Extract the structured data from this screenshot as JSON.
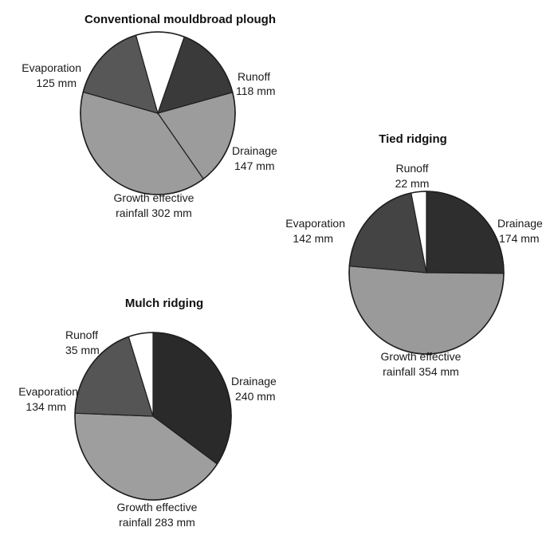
{
  "chart_data": [
    {
      "type": "pie",
      "title": "Conventional mouldbroad plough",
      "slices": [
        {
          "name": "Runoff",
          "label_line1": "Runoff",
          "label_line2": "118 mm",
          "value": 118,
          "color": "#3a3a3a"
        },
        {
          "name": "Drainage",
          "label_line1": "Drainage",
          "label_line2": "147 mm",
          "value": 147,
          "color": "#9c9c9c"
        },
        {
          "name": "Growth effective rainfall",
          "label_line1": "Growth effective",
          "label_line2": "rainfall 302 mm",
          "value": 302,
          "color": "#9c9c9c"
        },
        {
          "name": "Evaporation",
          "label_line1": "Evaporation",
          "label_line2": "125 mm",
          "value": 125,
          "color": "#575757"
        },
        {
          "name": "unlabelled",
          "label_line1": "",
          "label_line2": "",
          "value": 78,
          "color": "#ffffff"
        }
      ]
    },
    {
      "type": "pie",
      "title": "Tied ridging",
      "slices": [
        {
          "name": "Drainage",
          "label_line1": "Drainage",
          "label_line2": "174 mm",
          "value": 174,
          "color": "#2e2e2e"
        },
        {
          "name": "Growth effective rainfall",
          "label_line1": "Growth effective",
          "label_line2": "rainfall 354 mm",
          "value": 354,
          "color": "#9a9a9a"
        },
        {
          "name": "Evaporation",
          "label_line1": "Evaporation",
          "label_line2": "142 mm",
          "value": 142,
          "color": "#444444"
        },
        {
          "name": "Runoff",
          "label_line1": "Runoff",
          "label_line2": "22 mm",
          "value": 22,
          "color": "#ffffff"
        }
      ]
    },
    {
      "type": "pie",
      "title": "Mulch ridging",
      "slices": [
        {
          "name": "Drainage",
          "label_line1": "Drainage",
          "label_line2": "240 mm",
          "value": 240,
          "color": "#2a2a2a"
        },
        {
          "name": "Growth effective rainfall",
          "label_line1": "Growth effective",
          "label_line2": "rainfall 283 mm",
          "value": 283,
          "color": "#9e9e9e"
        },
        {
          "name": "Evaporation",
          "label_line1": "Evaporation",
          "label_line2": "134 mm",
          "value": 134,
          "color": "#555555"
        },
        {
          "name": "Runoff",
          "label_line1": "Runoff",
          "label_line2": "35 mm",
          "value": 35,
          "color": "#ffffff"
        }
      ]
    }
  ]
}
